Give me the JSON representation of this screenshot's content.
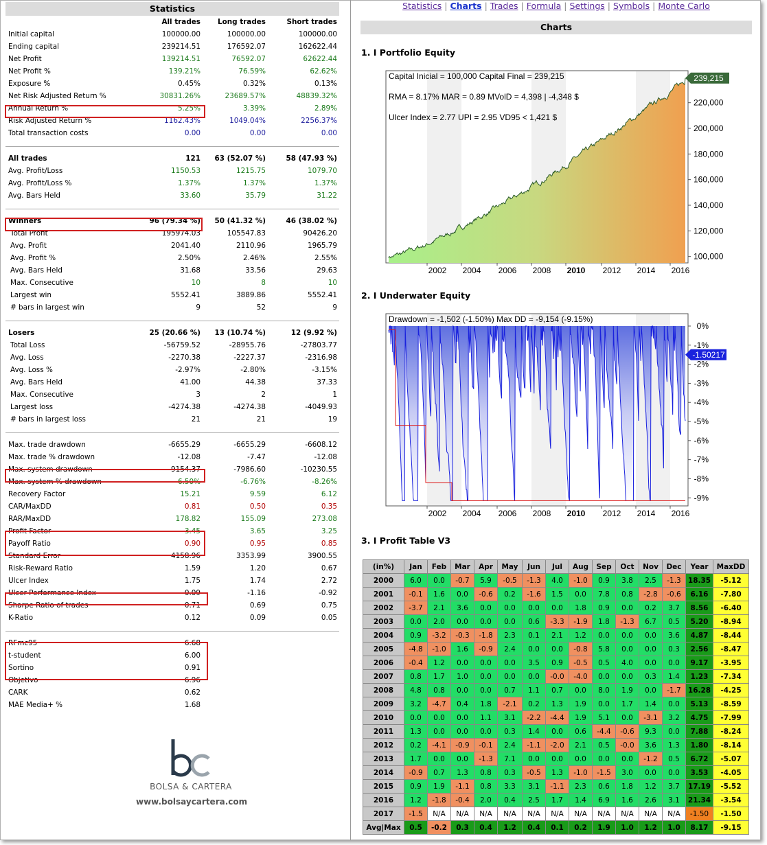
{
  "stats": {
    "title": "Statistics",
    "headers": [
      "All trades",
      "Long trades",
      "Short trades"
    ],
    "group1": [
      [
        "Initial capital",
        "100000.00",
        "100000.00",
        "100000.00",
        ""
      ],
      [
        "Ending capital",
        "239214.51",
        "176592.07",
        "162622.44",
        ""
      ],
      [
        "Net Profit",
        "139214.51",
        "76592.07",
        "62622.44",
        "g"
      ],
      [
        "Net Profit %",
        "139.21%",
        "76.59%",
        "62.62%",
        "g"
      ],
      [
        "Exposure %",
        "0.45%",
        "0.32%",
        "0.13%",
        ""
      ],
      [
        "Net Risk Adjusted Return %",
        "30831.26%",
        "23689.57%",
        "48839.32%",
        "g"
      ],
      [
        "Annual Return %",
        "5.25%",
        "3.39%",
        "2.89%",
        "g"
      ],
      [
        "Risk Adjusted Return %",
        "1162.43%",
        "1049.04%",
        "2256.37%",
        "b"
      ],
      [
        "Total transaction costs",
        "0.00",
        "0.00",
        "0.00",
        "b"
      ]
    ],
    "group2": [
      [
        "All trades",
        "121",
        "63 (52.07 %)",
        "58 (47.93 %)",
        ""
      ],
      [
        "Avg. Profit/Loss",
        "1150.53",
        "1215.75",
        "1079.70",
        "g"
      ],
      [
        "Avg. Profit/Loss %",
        "1.37%",
        "1.37%",
        "1.37%",
        "g"
      ],
      [
        "Avg. Bars Held",
        "33.60",
        "35.79",
        "31.22",
        "g"
      ]
    ],
    "group3": [
      [
        "Winners",
        "96 (79.34 %)",
        "50 (41.32 %)",
        "46 (38.02 %)",
        ""
      ],
      [
        "Total Profit",
        "195974.03",
        "105547.83",
        "90426.20",
        ""
      ],
      [
        "Avg. Profit",
        "2041.40",
        "2110.96",
        "1965.79",
        ""
      ],
      [
        "Avg. Profit %",
        "2.50%",
        "2.46%",
        "2.55%",
        ""
      ],
      [
        "Avg. Bars Held",
        "31.68",
        "33.56",
        "29.63",
        ""
      ],
      [
        "Max. Consecutive",
        "10",
        "8",
        "10",
        "g"
      ],
      [
        "Largest win",
        "5552.41",
        "3889.86",
        "5552.41",
        ""
      ],
      [
        "# bars in largest win",
        "9",
        "52",
        "9",
        ""
      ]
    ],
    "group4": [
      [
        "Losers",
        "25 (20.66 %)",
        "13 (10.74 %)",
        "12 (9.92 %)",
        ""
      ],
      [
        "Total Loss",
        "-56759.52",
        "-28955.76",
        "-27803.77",
        ""
      ],
      [
        "Avg. Loss",
        "-2270.38",
        "-2227.37",
        "-2316.98",
        ""
      ],
      [
        "Avg. Loss %",
        "-2.97%",
        "-2.80%",
        "-3.15%",
        ""
      ],
      [
        "Avg. Bars Held",
        "41.00",
        "44.38",
        "37.33",
        ""
      ],
      [
        "Max. Consecutive",
        "3",
        "2",
        "1",
        ""
      ],
      [
        "Largest loss",
        "-4274.38",
        "-4274.38",
        "-4049.93",
        ""
      ],
      [
        "# bars in largest loss",
        "21",
        "21",
        "19",
        ""
      ]
    ],
    "group5": [
      [
        "Max. trade drawdown",
        "-6655.29",
        "-6655.29",
        "-6608.12",
        ""
      ],
      [
        "Max. trade % drawdown",
        "-12.08",
        "-7.47",
        "-12.08",
        ""
      ],
      [
        "Max. system drawdown",
        "-9154.37",
        "-7986.60",
        "-10230.55",
        ""
      ],
      [
        "Max. system % drawdown",
        "-6.50%",
        "-6.76%",
        "-8.26%",
        "g"
      ],
      [
        "Recovery Factor",
        "15.21",
        "9.59",
        "6.12",
        "g"
      ],
      [
        "CAR/MaxDD",
        "0.81",
        "0.50",
        "0.35",
        "r"
      ],
      [
        "RAR/MaxDD",
        "178.82",
        "155.09",
        "273.08",
        "g"
      ],
      [
        "Profit Factor",
        "3.45",
        "3.65",
        "3.25",
        "g"
      ],
      [
        "Payoff Ratio",
        "0.90",
        "0.95",
        "0.85",
        "r"
      ],
      [
        "Standard Error",
        "4158.96",
        "3353.99",
        "3900.55",
        ""
      ],
      [
        "Risk-Reward Ratio",
        "1.59",
        "1.20",
        "0.67",
        ""
      ],
      [
        "Ulcer Index",
        "1.75",
        "1.74",
        "2.72",
        ""
      ],
      [
        "Ulcer Performance Index",
        "-0.09",
        "-1.16",
        "-0.92",
        ""
      ],
      [
        "Sharpe Ratio of trades",
        "0.71",
        "0.69",
        "0.75",
        ""
      ],
      [
        "K-Ratio",
        "0.12",
        "0.09",
        "0.05",
        ""
      ]
    ],
    "group6": [
      [
        "RFmc95",
        "6.68"
      ],
      [
        "t-student",
        "6.00"
      ],
      [
        "Sortino",
        "0.91"
      ],
      [
        "Objetivo",
        "6.96"
      ],
      [
        "CARK",
        "0.62"
      ],
      [
        "MAE Media+ %",
        "1.68"
      ]
    ]
  },
  "logo": {
    "mark": "bc",
    "name": "BOLSA & CARTERA",
    "url": "www.bolsaycartera.com"
  },
  "nav": [
    "Statistics",
    "Charts",
    "Trades",
    "Formula",
    "Settings",
    "Symbols",
    "Monte Carlo"
  ],
  "charts_title": "Charts",
  "equity": {
    "section": "1. I Portfolio Equity",
    "line1": "Capital Inicial = 100,000  Capital Final = 239,215",
    "line2": "RMA = 8.17%   MAR = 0.89   MVolD = 4,398 | -4,348 $",
    "line3": "Ulcer Index = 2.77   UPI = 2.95   VD95 < 1,421 $",
    "last": "239,215",
    "yticks": [
      "220,000",
      "200,000",
      "180,000",
      "160,000",
      "140,000",
      "120,000",
      "100,000"
    ],
    "xticks": [
      "2002",
      "2004",
      "2006",
      "2008",
      "2010",
      "2012",
      "2014",
      "2016"
    ]
  },
  "underwater": {
    "section": "2. I Underwater Equity",
    "line1": "Drawdown = -1,502 (-1.50%)       Max DD = -9,154 (-9.15%)",
    "last": "-1.50217",
    "yticks": [
      "0%",
      "-1%",
      "-2%",
      "-3%",
      "-4%",
      "-5%",
      "-6%",
      "-7%",
      "-8%",
      "-9%"
    ],
    "xticks": [
      "2002",
      "2004",
      "2006",
      "2008",
      "2010",
      "2012",
      "2014",
      "2016"
    ]
  },
  "profit_table": {
    "section": "3. I Profit Table V3",
    "headers": [
      "(in%)",
      "Jan",
      "Feb",
      "Mar",
      "Apr",
      "May",
      "Jun",
      "Jul",
      "Aug",
      "Sep",
      "Oct",
      "Nov",
      "Dec",
      "Year",
      "MaxDD"
    ],
    "rows": [
      [
        "2000",
        "6.0",
        "0.0",
        "-0.7",
        "5.9",
        "-0.5",
        "-1.3",
        "4.0",
        "-1.0",
        "0.9",
        "3.8",
        "2.5",
        "-1.3",
        "18.35",
        "-5.12"
      ],
      [
        "2001",
        "-0.1",
        "1.6",
        "0.0",
        "-0.6",
        "0.2",
        "-1.6",
        "1.5",
        "0.0",
        "7.8",
        "0.8",
        "-2.8",
        "-0.6",
        "6.16",
        "-7.80"
      ],
      [
        "2002",
        "-3.7",
        "2.1",
        "3.6",
        "0.0",
        "0.0",
        "0.0",
        "0.0",
        "1.8",
        "0.9",
        "0.0",
        "0.2",
        "3.7",
        "8.56",
        "-6.40"
      ],
      [
        "2003",
        "0.0",
        "2.0",
        "0.0",
        "0.0",
        "0.0",
        "0.6",
        "-3.3",
        "-1.9",
        "1.8",
        "-1.3",
        "6.7",
        "0.5",
        "5.20",
        "-8.94"
      ],
      [
        "2004",
        "0.9",
        "-3.2",
        "-0.3",
        "-1.8",
        "2.3",
        "0.1",
        "2.1",
        "1.2",
        "0.0",
        "0.0",
        "0.0",
        "3.6",
        "4.87",
        "-8.44"
      ],
      [
        "2005",
        "-4.8",
        "-1.0",
        "1.6",
        "-0.9",
        "2.4",
        "0.0",
        "0.0",
        "-0.8",
        "5.8",
        "0.0",
        "0.0",
        "0.3",
        "2.56",
        "-8.47"
      ],
      [
        "2006",
        "-0.4",
        "1.2",
        "0.0",
        "0.0",
        "0.0",
        "3.5",
        "0.9",
        "-0.5",
        "0.5",
        "4.0",
        "0.0",
        "0.0",
        "9.17",
        "-3.95"
      ],
      [
        "2007",
        "0.8",
        "1.7",
        "1.0",
        "0.0",
        "0.0",
        "0.0",
        "-0.0",
        "-4.0",
        "0.0",
        "0.0",
        "0.3",
        "1.4",
        "1.23",
        "-7.34"
      ],
      [
        "2008",
        "4.8",
        "0.8",
        "0.0",
        "0.0",
        "0.7",
        "1.1",
        "0.7",
        "0.0",
        "8.0",
        "1.9",
        "0.0",
        "-1.7",
        "16.28",
        "-4.25"
      ],
      [
        "2009",
        "3.2",
        "-4.7",
        "0.4",
        "1.8",
        "-2.1",
        "0.2",
        "1.3",
        "1.9",
        "0.0",
        "1.7",
        "1.4",
        "0.0",
        "5.13",
        "-8.59"
      ],
      [
        "2010",
        "0.0",
        "0.0",
        "0.0",
        "1.1",
        "3.1",
        "-2.2",
        "-4.4",
        "1.9",
        "5.1",
        "0.0",
        "-3.1",
        "3.2",
        "4.75",
        "-7.99"
      ],
      [
        "2011",
        "1.3",
        "0.0",
        "0.0",
        "0.0",
        "0.3",
        "1.4",
        "0.0",
        "0.6",
        "-4.4",
        "-0.6",
        "9.3",
        "0.0",
        "7.88",
        "-8.24"
      ],
      [
        "2012",
        "0.2",
        "-4.1",
        "-0.9",
        "-0.1",
        "2.4",
        "-1.1",
        "-2.0",
        "2.1",
        "0.5",
        "-0.0",
        "3.6",
        "1.3",
        "1.80",
        "-8.14"
      ],
      [
        "2013",
        "1.7",
        "0.0",
        "0.0",
        "-1.3",
        "7.1",
        "0.0",
        "0.0",
        "0.0",
        "0.0",
        "0.0",
        "-1.2",
        "0.5",
        "6.72",
        "-5.07"
      ],
      [
        "2014",
        "-0.9",
        "0.7",
        "1.3",
        "0.8",
        "0.3",
        "-0.5",
        "1.3",
        "-1.0",
        "-1.5",
        "3.0",
        "0.0",
        "0.0",
        "3.53",
        "-4.05"
      ],
      [
        "2015",
        "0.9",
        "1.9",
        "-1.1",
        "0.8",
        "3.3",
        "3.1",
        "-1.1",
        "2.3",
        "0.6",
        "1.8",
        "1.2",
        "3.7",
        "17.19",
        "-5.52"
      ],
      [
        "2016",
        "1.2",
        "-1.8",
        "-0.4",
        "2.0",
        "0.4",
        "2.5",
        "1.7",
        "1.4",
        "6.9",
        "1.6",
        "2.6",
        "3.1",
        "21.34",
        "-3.54"
      ],
      [
        "2017",
        "-1.5",
        "N/A",
        "N/A",
        "N/A",
        "N/A",
        "N/A",
        "N/A",
        "N/A",
        "N/A",
        "N/A",
        "N/A",
        "N/A",
        "-1.50",
        "-1.50"
      ]
    ],
    "avg": [
      "Avg|Max",
      "0.5",
      "-0.2",
      "0.3",
      "0.4",
      "1.2",
      "0.4",
      "0.1",
      "0.2",
      "1.9",
      "1.0",
      "1.2",
      "1.0",
      "8.17",
      "-9.15"
    ]
  },
  "colors": {
    "green": "#22dd66",
    "orange": "#f09060",
    "darkgreen": "#199b19",
    "yellow": "#ffff33",
    "highlight": "#d02020"
  }
}
